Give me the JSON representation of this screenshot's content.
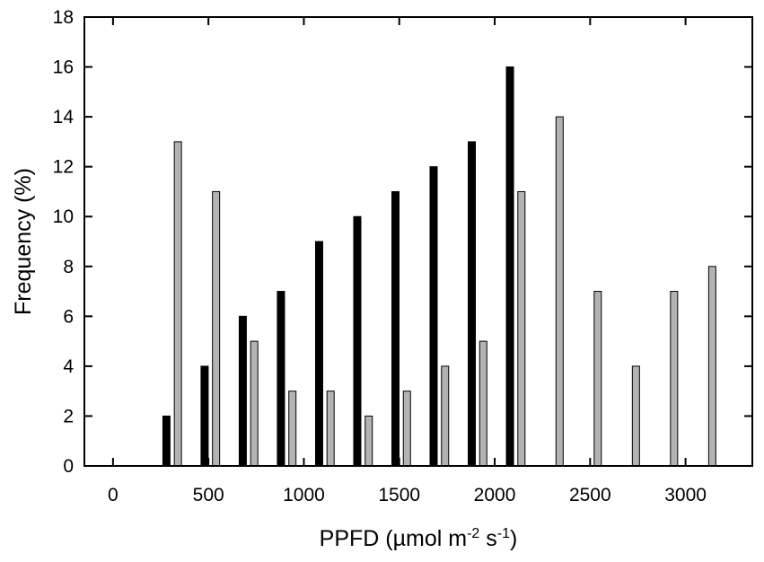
{
  "chart_data": {
    "type": "bar",
    "xlabel_main": "PPFD (µmol m",
    "xlabel_sup1": "-2",
    "xlabel_mid": " s",
    "xlabel_sup2": "-1",
    "xlabel_end": ")",
    "ylabel": "Frequency (%)",
    "xlim": [
      -150,
      3350
    ],
    "ylim": [
      0,
      18
    ],
    "xticks": [
      0,
      500,
      1000,
      1500,
      2000,
      2500,
      3000
    ],
    "yticks": [
      0,
      2,
      4,
      6,
      8,
      10,
      12,
      14,
      16,
      18
    ],
    "grid": false,
    "series": [
      {
        "color": "#000000",
        "points": [
          {
            "x": 280,
            "y": 2
          },
          {
            "x": 480,
            "y": 4
          },
          {
            "x": 680,
            "y": 6
          },
          {
            "x": 880,
            "y": 7
          },
          {
            "x": 1080,
            "y": 9
          },
          {
            "x": 1280,
            "y": 10
          },
          {
            "x": 1480,
            "y": 11
          },
          {
            "x": 1680,
            "y": 12
          },
          {
            "x": 1880,
            "y": 13
          },
          {
            "x": 2080,
            "y": 16
          }
        ]
      },
      {
        "color": "#b3b3b3",
        "points": [
          {
            "x": 340,
            "y": 13
          },
          {
            "x": 540,
            "y": 11
          },
          {
            "x": 740,
            "y": 5
          },
          {
            "x": 940,
            "y": 3
          },
          {
            "x": 1140,
            "y": 3
          },
          {
            "x": 1340,
            "y": 2
          },
          {
            "x": 1540,
            "y": 3
          },
          {
            "x": 1740,
            "y": 4
          },
          {
            "x": 1940,
            "y": 5
          },
          {
            "x": 2140,
            "y": 11
          },
          {
            "x": 2340,
            "y": 14
          },
          {
            "x": 2540,
            "y": 7
          },
          {
            "x": 2740,
            "y": 4
          },
          {
            "x": 2940,
            "y": 7
          },
          {
            "x": 3140,
            "y": 8
          }
        ]
      }
    ]
  }
}
